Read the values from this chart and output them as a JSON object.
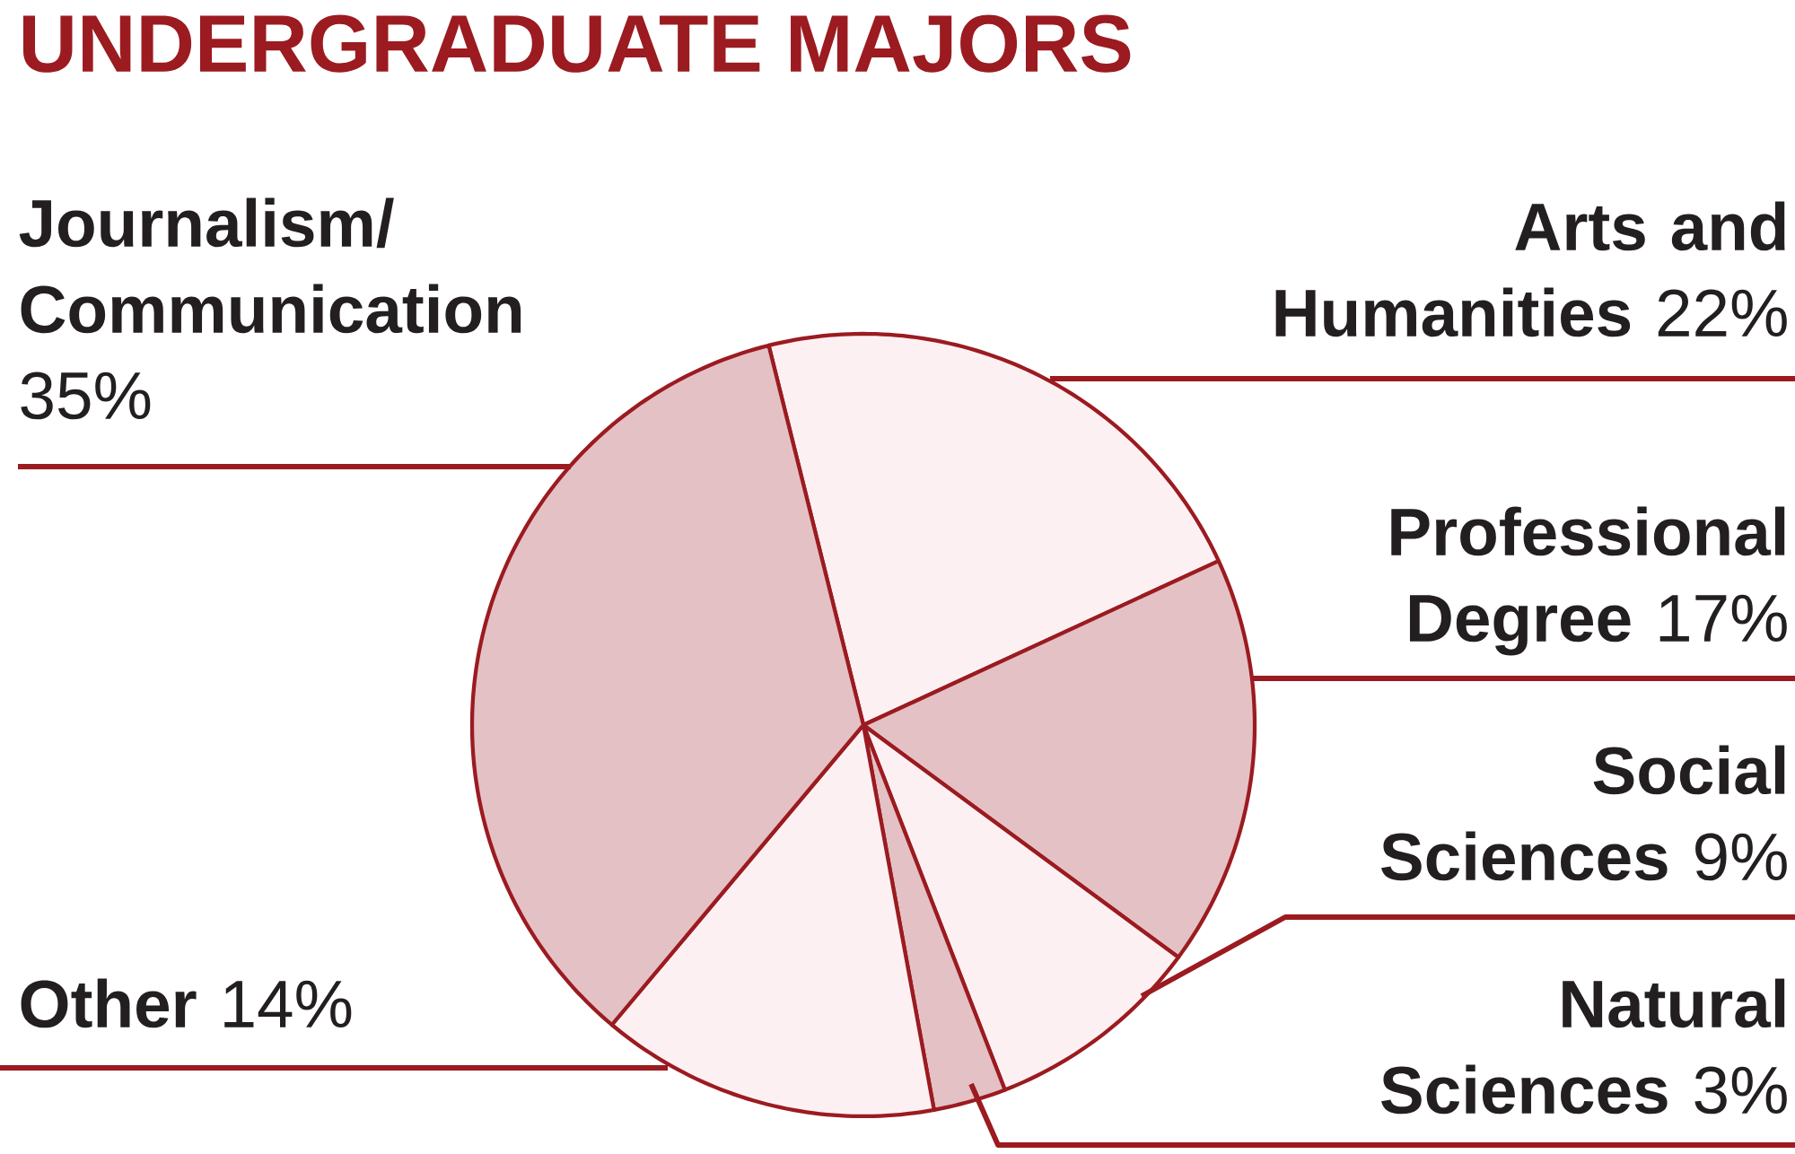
{
  "chart_data": {
    "type": "pie",
    "title": "UNDERGRADUATE MAJORS",
    "categories": [
      "Arts and Humanities",
      "Professional Degree",
      "Social Sciences",
      "Natural Sciences",
      "Other",
      "Journalism/ Communication"
    ],
    "values": [
      22,
      17,
      9,
      3,
      14,
      35
    ],
    "value_labels": [
      "22%",
      "17%",
      "9%",
      "3%",
      "14%",
      "35%"
    ],
    "colors": [
      "#fdf0f2",
      "#e4c1c5",
      "#fdf0f2",
      "#e4c1c5",
      "#fdf0f2",
      "#e4c1c5"
    ]
  }
}
